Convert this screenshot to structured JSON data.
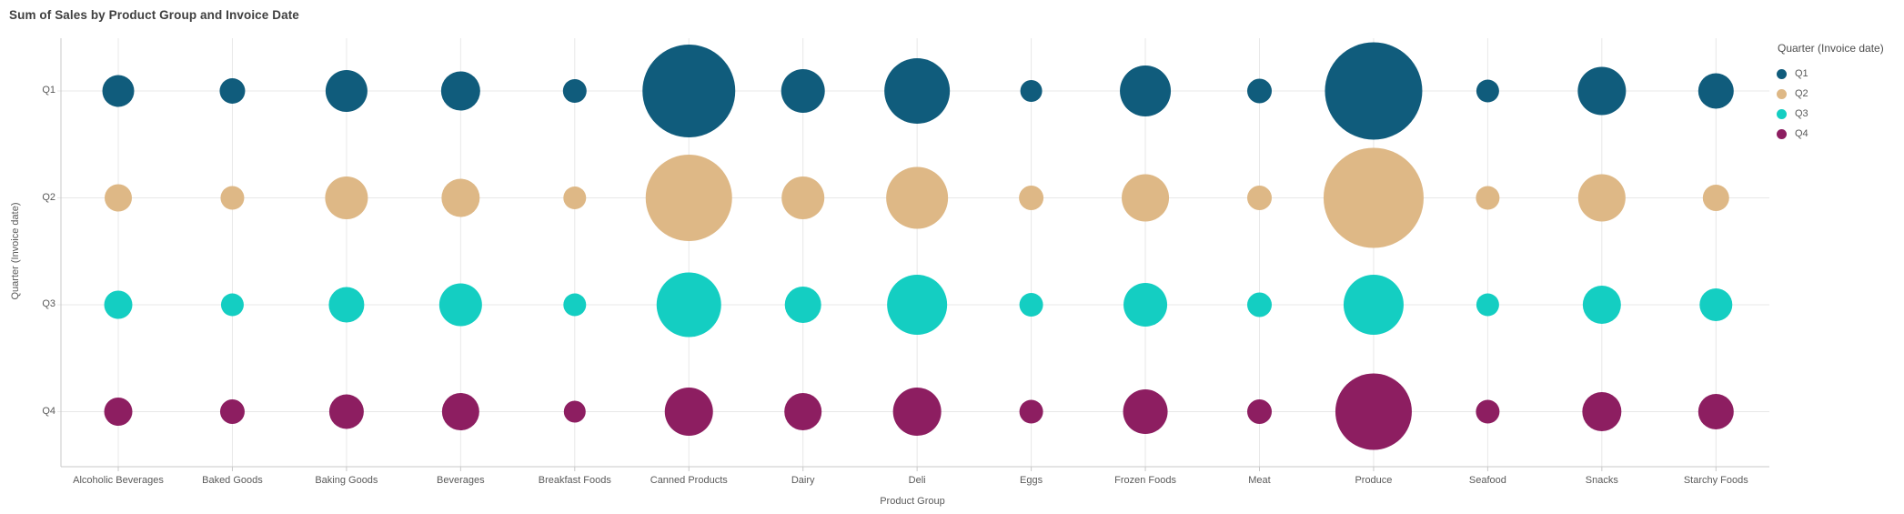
{
  "chart": {
    "title": "Sum of Sales by Product Group and Invoice Date"
  },
  "axes": {
    "x_title": "Product Group",
    "y_title": "Quarter (Invoice date)",
    "x_labels": [
      "Alcoholic Beverages",
      "Baked Goods",
      "Baking Goods",
      "Beverages",
      "Breakfast Foods",
      "Canned Products",
      "Dairy",
      "Deli",
      "Eggs",
      "Frozen Foods",
      "Meat",
      "Produce",
      "Seafood",
      "Snacks",
      "Starchy Foods"
    ],
    "y_labels": [
      "Q1",
      "Q2",
      "Q3",
      "Q4"
    ]
  },
  "legend": {
    "title": "Quarter (Invoice date)",
    "items": [
      {
        "label": "Q1",
        "color": "#105c7c"
      },
      {
        "label": "Q2",
        "color": "#deb886"
      },
      {
        "label": "Q3",
        "color": "#14cec2"
      },
      {
        "label": "Q4",
        "color": "#8d1e61"
      }
    ]
  },
  "colors": {
    "grid": "#e8e8e8",
    "axis": "#c9c9c9",
    "label_text": "#595959",
    "title_text": "#3f3f3f"
  },
  "chart_data": {
    "type": "scatter",
    "subtype": "bubble",
    "title": "Sum of Sales by Product Group and Invoice Date",
    "xlabel": "Product Group",
    "ylabel": "Quarter (Invoice date)",
    "size_measure": "Sum of Sales",
    "grid": true,
    "legend_position": "right",
    "categories": [
      "Alcoholic Beverages",
      "Baked Goods",
      "Baking Goods",
      "Beverages",
      "Breakfast Foods",
      "Canned Products",
      "Dairy",
      "Deli",
      "Eggs",
      "Frozen Foods",
      "Meat",
      "Produce",
      "Seafood",
      "Snacks",
      "Starchy Foods"
    ],
    "rows": [
      "Q1",
      "Q2",
      "Q3",
      "Q4"
    ],
    "series": [
      {
        "name": "Q1",
        "color": "#105c7c",
        "bubble_radius_px": [
          17.5,
          14,
          23,
          21.5,
          13,
          51,
          24,
          36,
          12,
          28,
          13.5,
          53.5,
          12.5,
          26.5,
          19.5
        ]
      },
      {
        "name": "Q2",
        "color": "#deb886",
        "bubble_radius_px": [
          15,
          13,
          23.5,
          21,
          12.5,
          47.5,
          23.5,
          34,
          13.5,
          26,
          13.5,
          55,
          13,
          26,
          14.5
        ]
      },
      {
        "name": "Q3",
        "color": "#14cec2",
        "bubble_radius_px": [
          15.5,
          12.5,
          19.5,
          23.5,
          12.5,
          35.5,
          20,
          33,
          13,
          24,
          13.5,
          33,
          12.5,
          21,
          18
        ]
      },
      {
        "name": "Q4",
        "color": "#8d1e61",
        "bubble_radius_px": [
          15.5,
          13.5,
          19,
          20.5,
          12,
          26.5,
          20.5,
          26.5,
          13,
          24.5,
          13.5,
          42,
          13,
          21.5,
          19.5
        ]
      }
    ]
  }
}
